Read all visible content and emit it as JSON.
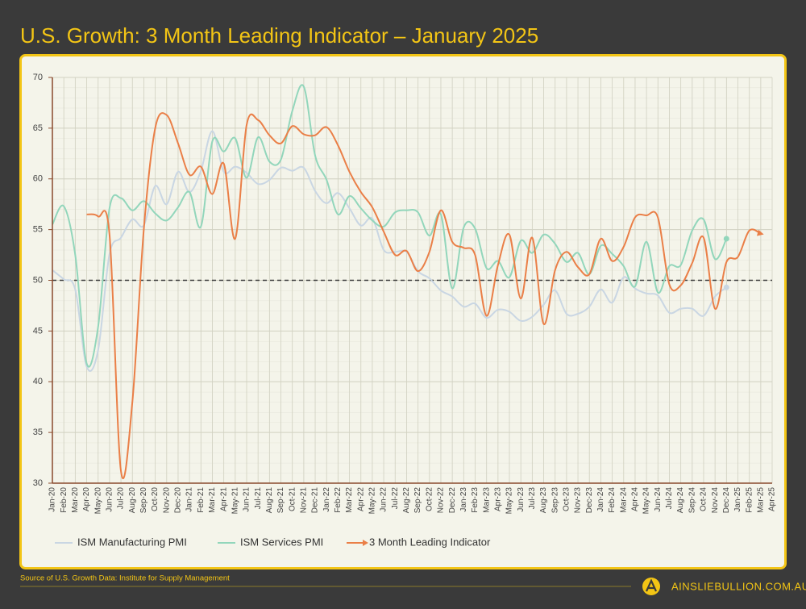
{
  "chart_data": {
    "type": "line",
    "title": "U.S. Growth: 3 Month Leading Indicator – January 2025",
    "categories": [
      "Jan-20",
      "Feb-20",
      "Mar-20",
      "Apr-20",
      "May-20",
      "Jun-20",
      "Jul-20",
      "Aug-20",
      "Sep-20",
      "Oct-20",
      "Nov-20",
      "Dec-20",
      "Jan-21",
      "Feb-21",
      "Mar-21",
      "Apr-21",
      "May-21",
      "Jun-21",
      "Jul-21",
      "Aug-21",
      "Sep-21",
      "Oct-21",
      "Nov-21",
      "Dec-21",
      "Jan-22",
      "Feb-22",
      "Mar-22",
      "Apr-22",
      "May-22",
      "Jun-22",
      "Jul-22",
      "Aug-22",
      "Sep-22",
      "Oct-22",
      "Nov-22",
      "Dec-22",
      "Jan-23",
      "Feb-23",
      "Mar-23",
      "Apr-23",
      "May-23",
      "Jun-23",
      "Jul-23",
      "Aug-23",
      "Sep-23",
      "Oct-23",
      "Nov-23",
      "Dec-23",
      "Jan-24",
      "Feb-24",
      "Mar-24",
      "Apr-24",
      "May-24",
      "Jun-24",
      "Jul-24",
      "Aug-24",
      "Sep-24",
      "Oct-24",
      "Nov-24",
      "Dec-24",
      "Jan-25",
      "Feb-25",
      "Mar-25",
      "Apr-25"
    ],
    "series": [
      {
        "name": "ISM Manufacturing PMI",
        "color": "#c9d6e3",
        "marker_end": "dot",
        "values": [
          51,
          50.1,
          49.1,
          41.5,
          43.1,
          52.6,
          54.2,
          56,
          55.4,
          59.3,
          57.5,
          60.7,
          58.7,
          60.8,
          64.7,
          60.7,
          61.2,
          60.6,
          59.5,
          59.9,
          61.1,
          60.8,
          61.1,
          58.8,
          57.6,
          58.6,
          57.1,
          55.4,
          56.1,
          53,
          52.8,
          52.8,
          50.9,
          50.2,
          49,
          48.4,
          47.4,
          47.7,
          46.3,
          47.1,
          46.9,
          46,
          46.4,
          47.6,
          49,
          46.7,
          46.7,
          47.4,
          49.1,
          47.8,
          50.3,
          49.2,
          48.7,
          48.5,
          46.8,
          47.2,
          47.2,
          46.5,
          48.4,
          49.3,
          null,
          null,
          null,
          null
        ]
      },
      {
        "name": "ISM Services PMI",
        "color": "#92d6bb",
        "marker_end": "dot",
        "values": [
          55.5,
          57.3,
          52.5,
          41.8,
          45.4,
          57.1,
          58.1,
          56.9,
          57.8,
          56.6,
          55.9,
          57.2,
          58.7,
          55.3,
          63.7,
          62.7,
          64,
          60.1,
          64.1,
          61.7,
          61.9,
          66.7,
          69.1,
          62.3,
          59.9,
          56.5,
          58.3,
          57.1,
          55.9,
          55.3,
          56.7,
          56.9,
          56.7,
          54.4,
          56.5,
          49.2,
          55.2,
          55.1,
          51.2,
          51.9,
          50.3,
          53.9,
          52.7,
          54.5,
          53.6,
          51.8,
          52.7,
          50.6,
          53.4,
          52.6,
          51.4,
          49.4,
          53.8,
          48.8,
          51.4,
          51.5,
          54.9,
          56,
          52.1,
          54.1,
          null,
          null,
          null,
          null
        ]
      },
      {
        "name": "3 Month Leading Indicator",
        "color": "#ea7f47",
        "marker_end": "arrow",
        "values": [
          null,
          null,
          null,
          56.5,
          56.3,
          54.5,
          31.2,
          38,
          55,
          65,
          66.3,
          63.5,
          60.4,
          61.2,
          58.5,
          61.5,
          54.1,
          65.3,
          65.8,
          64.3,
          63.5,
          65.2,
          64.4,
          64.3,
          65.1,
          63.3,
          60.7,
          58.7,
          57.2,
          54.8,
          52.5,
          52.9,
          50.9,
          52.8,
          56.9,
          53.8,
          53.2,
          52.5,
          46.5,
          51.5,
          54.5,
          48.2,
          54.2,
          45.7,
          51,
          52.8,
          51.3,
          50.6,
          54.1,
          51.9,
          53.3,
          56.2,
          56.4,
          56.2,
          49.6,
          49.5,
          51.7,
          54.2,
          47.2,
          51.8,
          52.3,
          54.9,
          54.6,
          null
        ]
      }
    ],
    "ylim": [
      30,
      70
    ],
    "yticks": [
      30,
      35,
      40,
      45,
      50,
      55,
      60,
      65,
      70
    ],
    "reference_line": 50,
    "grid": true,
    "legend": "bottom"
  },
  "footer": {
    "source": "Source of U.S. Growth Data: Institute for Supply Management",
    "brand": "AINSLIEBULLION.COM.AU"
  }
}
